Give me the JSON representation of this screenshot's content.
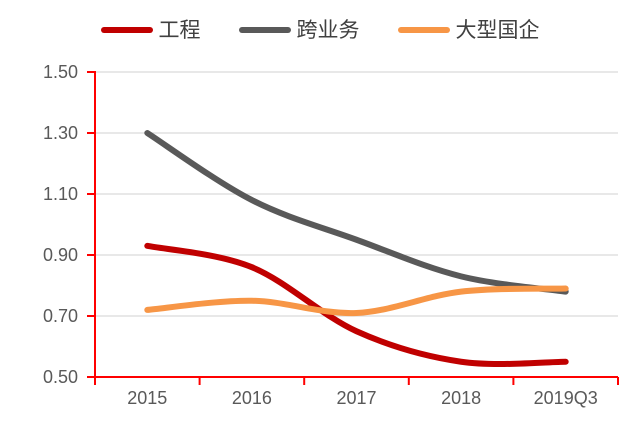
{
  "chart_data": {
    "type": "line",
    "title": "",
    "x": [
      "2015",
      "2016",
      "2017",
      "2018",
      "2019Q3"
    ],
    "series": [
      {
        "name": "工程",
        "color": "#C00000",
        "values": [
          0.93,
          0.86,
          0.65,
          0.55,
          0.55
        ]
      },
      {
        "name": "跨业务",
        "color": "#595959",
        "values": [
          1.3,
          1.08,
          0.95,
          0.83,
          0.78
        ]
      },
      {
        "name": "大型国企",
        "color": "#F79646",
        "values": [
          0.72,
          0.75,
          0.71,
          0.78,
          0.79
        ]
      }
    ],
    "ylim": [
      0.5,
      1.5
    ],
    "ytick_step": 0.2,
    "ytick_labels": [
      "0.50",
      "0.70",
      "0.90",
      "1.10",
      "1.30",
      "1.50"
    ],
    "grid": "horizontal",
    "legend_position": "top",
    "line_style": "smooth",
    "axis_color": "#FF0000",
    "grid_color": "#D9D9D9",
    "axis_text_color": "#595959",
    "legend_text_color": "#404040"
  }
}
